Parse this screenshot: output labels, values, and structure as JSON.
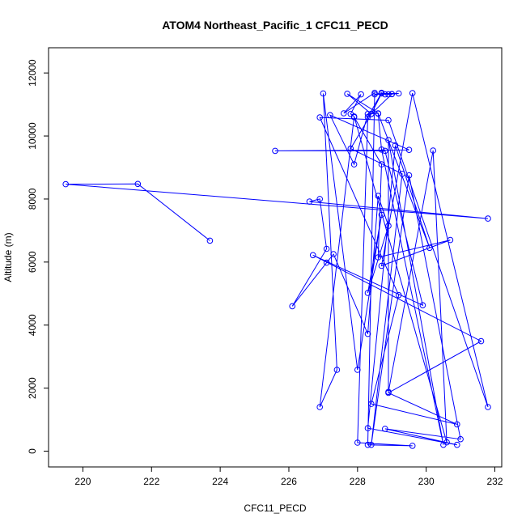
{
  "chart_data": {
    "type": "line",
    "title": "ATOM4 Northeast_Pacific_1 CFC11_PECD",
    "xlabel": "CFC11_PECD",
    "ylabel": "Altitude (m)",
    "xlim": [
      219,
      232.2
    ],
    "ylim": [
      -500,
      12800
    ],
    "xticks": [
      220,
      222,
      224,
      226,
      228,
      230,
      232
    ],
    "yticks": [
      0,
      2000,
      4000,
      6000,
      8000,
      10000,
      12000
    ],
    "grid": false,
    "series_color": "#0000ff",
    "series": [
      {
        "points": [
          [
            223.7,
            6680
          ],
          [
            221.6,
            8480
          ],
          [
            219.5,
            8470
          ],
          [
            231.8,
            7380
          ],
          [
            226.6,
            7920
          ],
          [
            226.9,
            8000
          ],
          [
            227.1,
            6420
          ],
          [
            226.1,
            4600
          ],
          [
            227.1,
            5980
          ],
          [
            227.3,
            6250
          ],
          [
            228.3,
            3720
          ],
          [
            228.6,
            8100
          ],
          [
            228.9,
            7150
          ],
          [
            228.3,
            5020
          ],
          [
            228.7,
            7500
          ],
          [
            228.0,
            2580
          ],
          [
            227.0,
            11350
          ],
          [
            227.4,
            2580
          ],
          [
            226.9,
            1400
          ],
          [
            227.9,
            10600
          ],
          [
            228.7,
            9100
          ],
          [
            228.6,
            6150
          ],
          [
            230.7,
            6700
          ],
          [
            228.7,
            5880
          ],
          [
            229.6,
            11360
          ],
          [
            231.8,
            1400
          ],
          [
            228.9,
            10500
          ],
          [
            226.9,
            10590
          ],
          [
            229.2,
            4950
          ],
          [
            228.4,
            1500
          ],
          [
            230.9,
            850
          ],
          [
            228.9,
            1850
          ],
          [
            231.6,
            3490
          ],
          [
            226.7,
            6220
          ],
          [
            229.9,
            4630
          ],
          [
            228.8,
            9530
          ],
          [
            225.6,
            9530
          ],
          [
            229.5,
            9560
          ],
          [
            227.2,
            10660
          ],
          [
            227.9,
            9100
          ],
          [
            228.3,
            10700
          ],
          [
            228.6,
            10720
          ],
          [
            227.7,
            11340
          ],
          [
            228.4,
            10700
          ],
          [
            228.7,
            11350
          ],
          [
            229.2,
            11350
          ],
          [
            229.0,
            11330
          ],
          [
            228.4,
            10700
          ],
          [
            227.8,
            9600
          ],
          [
            229.3,
            8800
          ],
          [
            228.4,
            200
          ],
          [
            229.5,
            8750
          ],
          [
            231.0,
            380
          ],
          [
            228.8,
            710
          ],
          [
            230.9,
            200
          ],
          [
            228.3,
            730
          ],
          [
            229.1,
            9700
          ],
          [
            230.1,
            6450
          ],
          [
            228.6,
            10710
          ],
          [
            228.7,
            9570
          ],
          [
            230.5,
            200
          ],
          [
            228.9,
            9870
          ],
          [
            228.9,
            1880
          ],
          [
            230.2,
            9540
          ],
          [
            230.6,
            280
          ],
          [
            227.9,
            10620
          ],
          [
            227.8,
            10700
          ],
          [
            228.1,
            11320
          ],
          [
            227.6,
            10720
          ],
          [
            228.5,
            11370
          ],
          [
            228.3,
            200
          ],
          [
            229.6,
            170
          ],
          [
            228.0,
            270
          ],
          [
            228.3,
            10600
          ],
          [
            228.7,
            11370
          ],
          [
            228.5,
            11320
          ],
          [
            228.9,
            11320
          ],
          [
            229.0,
            11330
          ],
          [
            228.8,
            11320
          ]
        ]
      }
    ]
  }
}
